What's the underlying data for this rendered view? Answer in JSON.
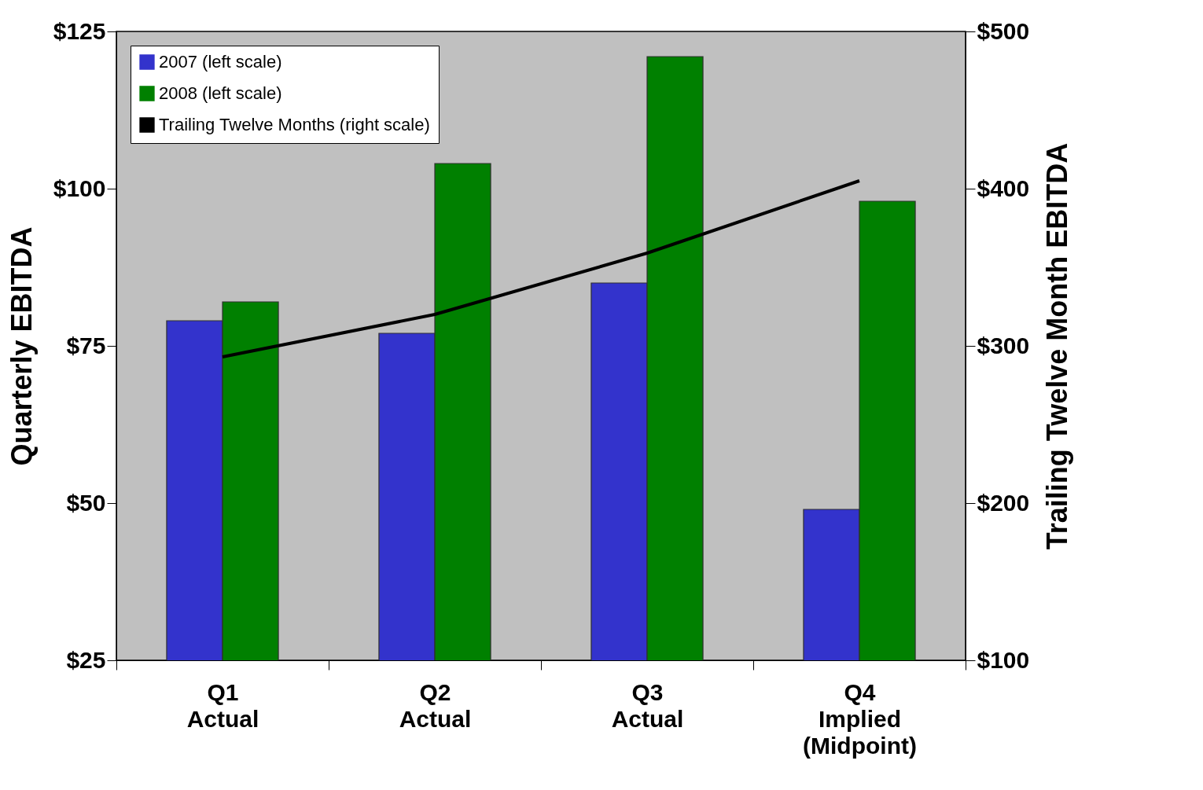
{
  "chart_data": {
    "type": "bar",
    "categories": [
      "Q1\nActual",
      "Q2\nActual",
      "Q3\nActual",
      "Q4\nImplied\n(Midpoint)"
    ],
    "ylabel": "Quarterly EBITDA",
    "y2label": "Trailing Twelve Month EBITDA",
    "ylim": [
      25,
      125
    ],
    "yticks": [
      {
        "value": 25,
        "label": "$25"
      },
      {
        "value": 50,
        "label": "$50"
      },
      {
        "value": 75,
        "label": "$75"
      },
      {
        "value": 100,
        "label": "$100"
      },
      {
        "value": 125,
        "label": "$125"
      }
    ],
    "y2lim": [
      100,
      500
    ],
    "y2ticks": [
      {
        "value": 100,
        "label": "$100"
      },
      {
        "value": 200,
        "label": "$200"
      },
      {
        "value": 300,
        "label": "$300"
      },
      {
        "value": 400,
        "label": "$400"
      },
      {
        "value": 500,
        "label": "$500"
      }
    ],
    "series": [
      {
        "name": "2007 (left scale)",
        "color": "#3333cc",
        "values": [
          79,
          77,
          85,
          49
        ]
      },
      {
        "name": "2008 (left scale)",
        "color": "#008000",
        "values": [
          82,
          104,
          121,
          98
        ]
      },
      {
        "name": "Trailing Twelve Months (right scale)",
        "color": "#000000",
        "type": "line",
        "axis": "y2",
        "values": [
          293,
          320,
          359,
          405
        ]
      }
    ],
    "grid": false,
    "legend": "top left"
  }
}
